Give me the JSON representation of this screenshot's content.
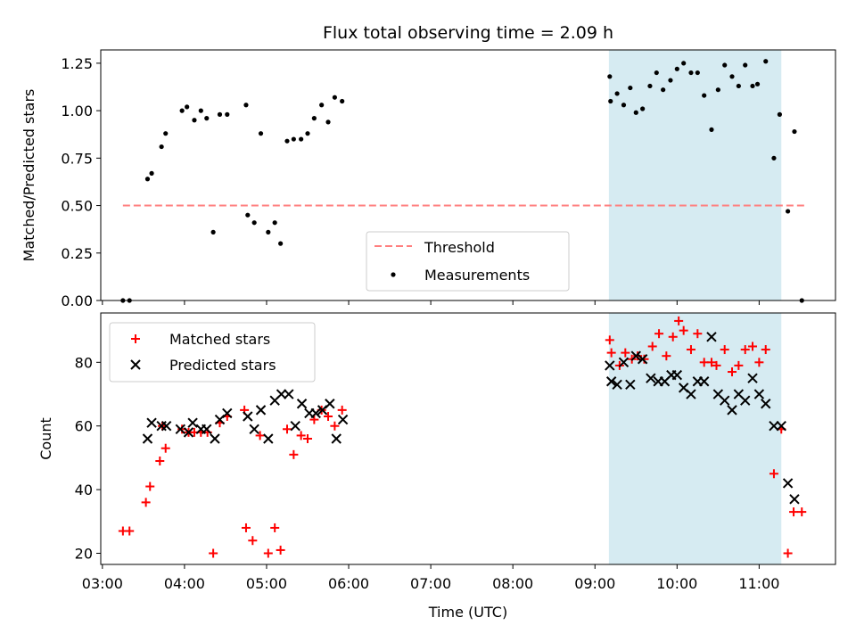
{
  "title": "Flux total observing time = 2.09 h",
  "colors": {
    "threshold": "#ff7f7f",
    "measurement": "#000000",
    "matched": "#ff0000",
    "predicted": "#000000",
    "observing_span": "#add8e6"
  },
  "chart_data": [
    {
      "type": "scatter",
      "ylabel": "Matched/Predicted stars",
      "ylim": [
        0,
        1.32
      ],
      "yticks": [
        0,
        0.25,
        0.5,
        0.75,
        1.0,
        1.25
      ],
      "ytick_labels": [
        "0.00",
        "0.25",
        "0.50",
        "0.75",
        "1.00",
        "1.25"
      ],
      "xlim_hours": [
        2.98,
        11.93
      ],
      "xticks_hours": [
        3,
        4,
        5,
        6,
        7,
        8,
        9,
        10,
        11
      ],
      "grid": false,
      "legend": {
        "location": "lower-center",
        "entries": [
          {
            "label": "Threshold",
            "marker": "dashed-line"
          },
          {
            "label": "Measurements",
            "marker": "dot"
          }
        ]
      },
      "threshold": {
        "value": 0.5,
        "x_start_hours": 3.25,
        "x_end_hours": 11.55
      },
      "observing_span_hours": [
        9.17,
        11.27
      ],
      "measurements": [
        [
          3.25,
          0.0
        ],
        [
          3.33,
          0.0
        ],
        [
          3.55,
          0.64
        ],
        [
          3.6,
          0.67
        ],
        [
          3.72,
          0.81
        ],
        [
          3.77,
          0.88
        ],
        [
          3.97,
          1.0
        ],
        [
          4.03,
          1.02
        ],
        [
          4.12,
          0.95
        ],
        [
          4.2,
          1.0
        ],
        [
          4.27,
          0.96
        ],
        [
          4.35,
          0.36
        ],
        [
          4.43,
          0.98
        ],
        [
          4.52,
          0.98
        ],
        [
          4.75,
          1.03
        ],
        [
          4.77,
          0.45
        ],
        [
          4.85,
          0.41
        ],
        [
          4.93,
          0.88
        ],
        [
          5.02,
          0.36
        ],
        [
          5.1,
          0.41
        ],
        [
          5.17,
          0.3
        ],
        [
          5.25,
          0.84
        ],
        [
          5.33,
          0.85
        ],
        [
          5.42,
          0.85
        ],
        [
          5.5,
          0.88
        ],
        [
          5.58,
          0.96
        ],
        [
          5.67,
          1.03
        ],
        [
          5.75,
          0.94
        ],
        [
          5.83,
          1.07
        ],
        [
          5.92,
          1.05
        ],
        [
          9.18,
          1.18
        ],
        [
          9.19,
          1.05
        ],
        [
          9.27,
          1.09
        ],
        [
          9.35,
          1.03
        ],
        [
          9.43,
          1.12
        ],
        [
          9.5,
          0.99
        ],
        [
          9.58,
          1.01
        ],
        [
          9.67,
          1.13
        ],
        [
          9.75,
          1.2
        ],
        [
          9.83,
          1.11
        ],
        [
          9.92,
          1.16
        ],
        [
          10.0,
          1.22
        ],
        [
          10.08,
          1.25
        ],
        [
          10.17,
          1.2
        ],
        [
          10.25,
          1.2
        ],
        [
          10.33,
          1.08
        ],
        [
          10.42,
          0.9
        ],
        [
          10.5,
          1.11
        ],
        [
          10.58,
          1.24
        ],
        [
          10.67,
          1.18
        ],
        [
          10.75,
          1.13
        ],
        [
          10.83,
          1.24
        ],
        [
          10.92,
          1.13
        ],
        [
          10.98,
          1.14
        ],
        [
          11.08,
          1.26
        ],
        [
          11.18,
          0.75
        ],
        [
          11.25,
          0.98
        ],
        [
          11.35,
          0.47
        ],
        [
          11.43,
          0.89
        ],
        [
          11.52,
          0.0
        ]
      ]
    },
    {
      "type": "scatter",
      "xlabel": "Time (UTC)",
      "ylabel": "Count",
      "ylim": [
        16.5,
        95.5
      ],
      "yticks": [
        20,
        40,
        60,
        80
      ],
      "ytick_labels": [
        "20",
        "40",
        "60",
        "80"
      ],
      "xlim_hours": [
        2.98,
        11.93
      ],
      "xticks_hours": [
        3,
        4,
        5,
        6,
        7,
        8,
        9,
        10,
        11
      ],
      "xtick_labels": [
        "03:00",
        "04:00",
        "05:00",
        "06:00",
        "07:00",
        "08:00",
        "09:00",
        "10:00",
        "11:00"
      ],
      "grid": false,
      "legend": {
        "location": "upper-left",
        "entries": [
          {
            "label": "Matched stars",
            "marker": "plus"
          },
          {
            "label": "Predicted stars",
            "marker": "x"
          }
        ]
      },
      "observing_span_hours": [
        9.17,
        11.27
      ],
      "series": [
        {
          "name": "Matched stars",
          "marker": "plus",
          "points": [
            [
              3.25,
              27
            ],
            [
              3.33,
              27
            ],
            [
              3.53,
              36
            ],
            [
              3.58,
              41
            ],
            [
              3.7,
              49
            ],
            [
              3.77,
              53
            ],
            [
              3.73,
              60
            ],
            [
              3.97,
              59
            ],
            [
              4.05,
              58
            ],
            [
              4.12,
              58
            ],
            [
              4.2,
              58
            ],
            [
              4.28,
              58
            ],
            [
              4.35,
              20
            ],
            [
              4.43,
              61
            ],
            [
              4.52,
              63
            ],
            [
              4.73,
              65
            ],
            [
              4.75,
              28
            ],
            [
              4.83,
              24
            ],
            [
              4.92,
              57
            ],
            [
              5.02,
              20
            ],
            [
              5.1,
              28
            ],
            [
              5.17,
              21
            ],
            [
              5.25,
              59
            ],
            [
              5.33,
              51
            ],
            [
              5.42,
              57
            ],
            [
              5.5,
              56
            ],
            [
              5.58,
              62
            ],
            [
              5.67,
              65
            ],
            [
              5.75,
              63
            ],
            [
              5.83,
              60
            ],
            [
              5.92,
              65
            ],
            [
              9.18,
              87
            ],
            [
              9.2,
              83
            ],
            [
              9.3,
              79
            ],
            [
              9.37,
              83
            ],
            [
              9.45,
              81
            ],
            [
              9.52,
              82
            ],
            [
              9.6,
              81
            ],
            [
              9.7,
              85
            ],
            [
              9.78,
              89
            ],
            [
              9.87,
              82
            ],
            [
              9.95,
              88
            ],
            [
              10.02,
              93
            ],
            [
              10.08,
              90
            ],
            [
              10.17,
              84
            ],
            [
              10.25,
              89
            ],
            [
              10.33,
              80
            ],
            [
              10.42,
              80
            ],
            [
              10.48,
              79
            ],
            [
              10.58,
              84
            ],
            [
              10.67,
              77
            ],
            [
              10.75,
              79
            ],
            [
              10.83,
              84
            ],
            [
              10.92,
              85
            ],
            [
              11.0,
              80
            ],
            [
              11.08,
              84
            ],
            [
              11.18,
              45
            ],
            [
              11.27,
              59
            ],
            [
              11.35,
              20
            ],
            [
              11.42,
              33
            ],
            [
              11.52,
              33
            ]
          ]
        },
        {
          "name": "Predicted stars",
          "marker": "x",
          "points": [
            [
              3.55,
              56
            ],
            [
              3.6,
              61
            ],
            [
              3.72,
              60
            ],
            [
              3.78,
              60
            ],
            [
              3.95,
              59
            ],
            [
              4.05,
              58
            ],
            [
              4.1,
              61
            ],
            [
              4.2,
              59
            ],
            [
              4.27,
              59
            ],
            [
              4.37,
              56
            ],
            [
              4.43,
              62
            ],
            [
              4.52,
              64
            ],
            [
              4.77,
              63
            ],
            [
              4.85,
              59
            ],
            [
              4.93,
              65
            ],
            [
              5.02,
              56
            ],
            [
              5.1,
              68
            ],
            [
              5.18,
              70
            ],
            [
              5.27,
              70
            ],
            [
              5.35,
              60
            ],
            [
              5.43,
              67
            ],
            [
              5.52,
              64
            ],
            [
              5.6,
              64
            ],
            [
              5.68,
              65
            ],
            [
              5.77,
              67
            ],
            [
              5.85,
              56
            ],
            [
              5.93,
              62
            ],
            [
              9.18,
              79
            ],
            [
              9.2,
              74
            ],
            [
              9.27,
              73
            ],
            [
              9.35,
              80
            ],
            [
              9.43,
              73
            ],
            [
              9.5,
              82
            ],
            [
              9.58,
              81
            ],
            [
              9.68,
              75
            ],
            [
              9.77,
              74
            ],
            [
              9.85,
              74
            ],
            [
              9.93,
              76
            ],
            [
              10.0,
              76
            ],
            [
              10.08,
              72
            ],
            [
              10.17,
              70
            ],
            [
              10.25,
              74
            ],
            [
              10.33,
              74
            ],
            [
              10.42,
              88
            ],
            [
              10.5,
              70
            ],
            [
              10.58,
              68
            ],
            [
              10.67,
              65
            ],
            [
              10.75,
              70
            ],
            [
              10.83,
              68
            ],
            [
              10.92,
              75
            ],
            [
              11.0,
              70
            ],
            [
              11.08,
              67
            ],
            [
              11.18,
              60
            ],
            [
              11.27,
              60
            ],
            [
              11.35,
              42
            ],
            [
              11.43,
              37
            ]
          ]
        }
      ]
    }
  ]
}
